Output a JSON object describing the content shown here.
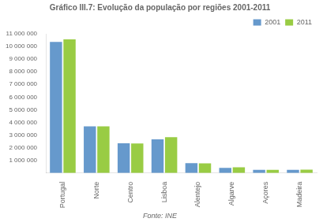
{
  "chart_data": {
    "type": "bar",
    "title": "Gráfico III.7: Evolução da população por regiões 2001-2011",
    "categories": [
      "Portugal",
      "Norte",
      "Centro",
      "Lisboa",
      "Alentejo",
      "Algarve",
      "Açores",
      "Madeira"
    ],
    "series": [
      {
        "name": "2001",
        "color": "#6699CC",
        "values": [
          10355824,
          3687293,
          2348397,
          2661850,
          776585,
          395218,
          241763,
          244797
        ]
      },
      {
        "name": "2011",
        "color": "#99CC44",
        "values": [
          10562178,
          3689682,
          2327755,
          2821876,
          757302,
          451006,
          246772,
          267785
        ]
      }
    ],
    "ylim": [
      0,
      11000000
    ],
    "yticks": [
      {
        "value": 1000000,
        "label": "1 000 000"
      },
      {
        "value": 2000000,
        "label": "2 000 000"
      },
      {
        "value": 3000000,
        "label": "3 000 000"
      },
      {
        "value": 4000000,
        "label": "4 000 000"
      },
      {
        "value": 5000000,
        "label": "5 000 000"
      },
      {
        "value": 6000000,
        "label": "6 000 000"
      },
      {
        "value": 7000000,
        "label": "7 000 000"
      },
      {
        "value": 8000000,
        "label": "8 000 000"
      },
      {
        "value": 9000000,
        "label": "9 000 000"
      },
      {
        "value": 10000000,
        "label": "10 000 000"
      },
      {
        "value": 11000000,
        "label": "11 000 000"
      }
    ],
    "annotations": [
      "Fonte: INE"
    ],
    "grid": false,
    "legend": "upper right"
  }
}
